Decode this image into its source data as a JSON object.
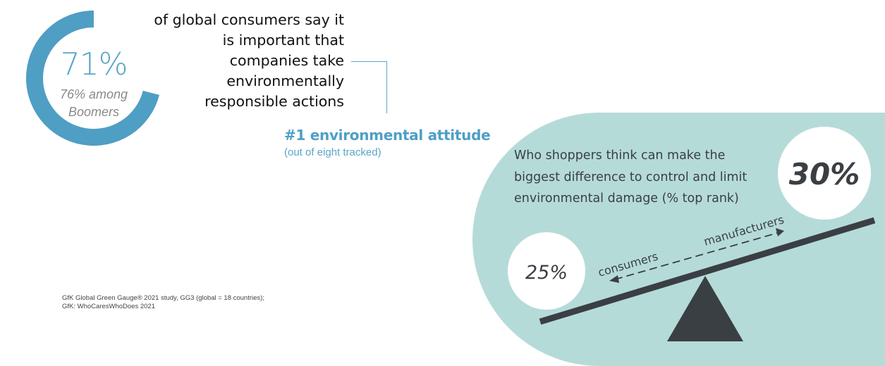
{
  "stat": {
    "percent": "71%",
    "percent_value": 71,
    "boomers_line1": "76% among",
    "boomers_line2": "Boomers",
    "statement": [
      "of global consumers say it",
      "is important that",
      "companies take",
      "environmentally",
      "responsible actions"
    ],
    "rank_title": "#1 environmental attitude",
    "rank_subtitle": "(out of eight tracked)"
  },
  "source": [
    "GfK Global Green Gauge® 2021 study, GG3 (global = 18 countries);",
    "GfK: WhoCaresWhoDoes 2021"
  ],
  "question": [
    "Who shoppers think can make the",
    "biggest difference to control and limit",
    "environmental damage (% top rank)"
  ],
  "chart_data": [
    {
      "type": "pie",
      "title": "",
      "values": [
        71,
        29
      ],
      "labels": [
        "71%",
        ""
      ],
      "note": "76% among Boomers"
    },
    {
      "type": "bar",
      "title": "Who shoppers think can make the biggest difference to control and limit environmental damage (% top rank)",
      "categories": [
        "consumers",
        "manufacturers"
      ],
      "values": [
        25,
        30
      ],
      "labels": [
        "25%",
        "30%"
      ]
    }
  ],
  "colors": {
    "accent": "#5aa6c8",
    "donut": "#4f9ec4",
    "panel": "#b5dbd8",
    "dark": "#3a3f44"
  }
}
